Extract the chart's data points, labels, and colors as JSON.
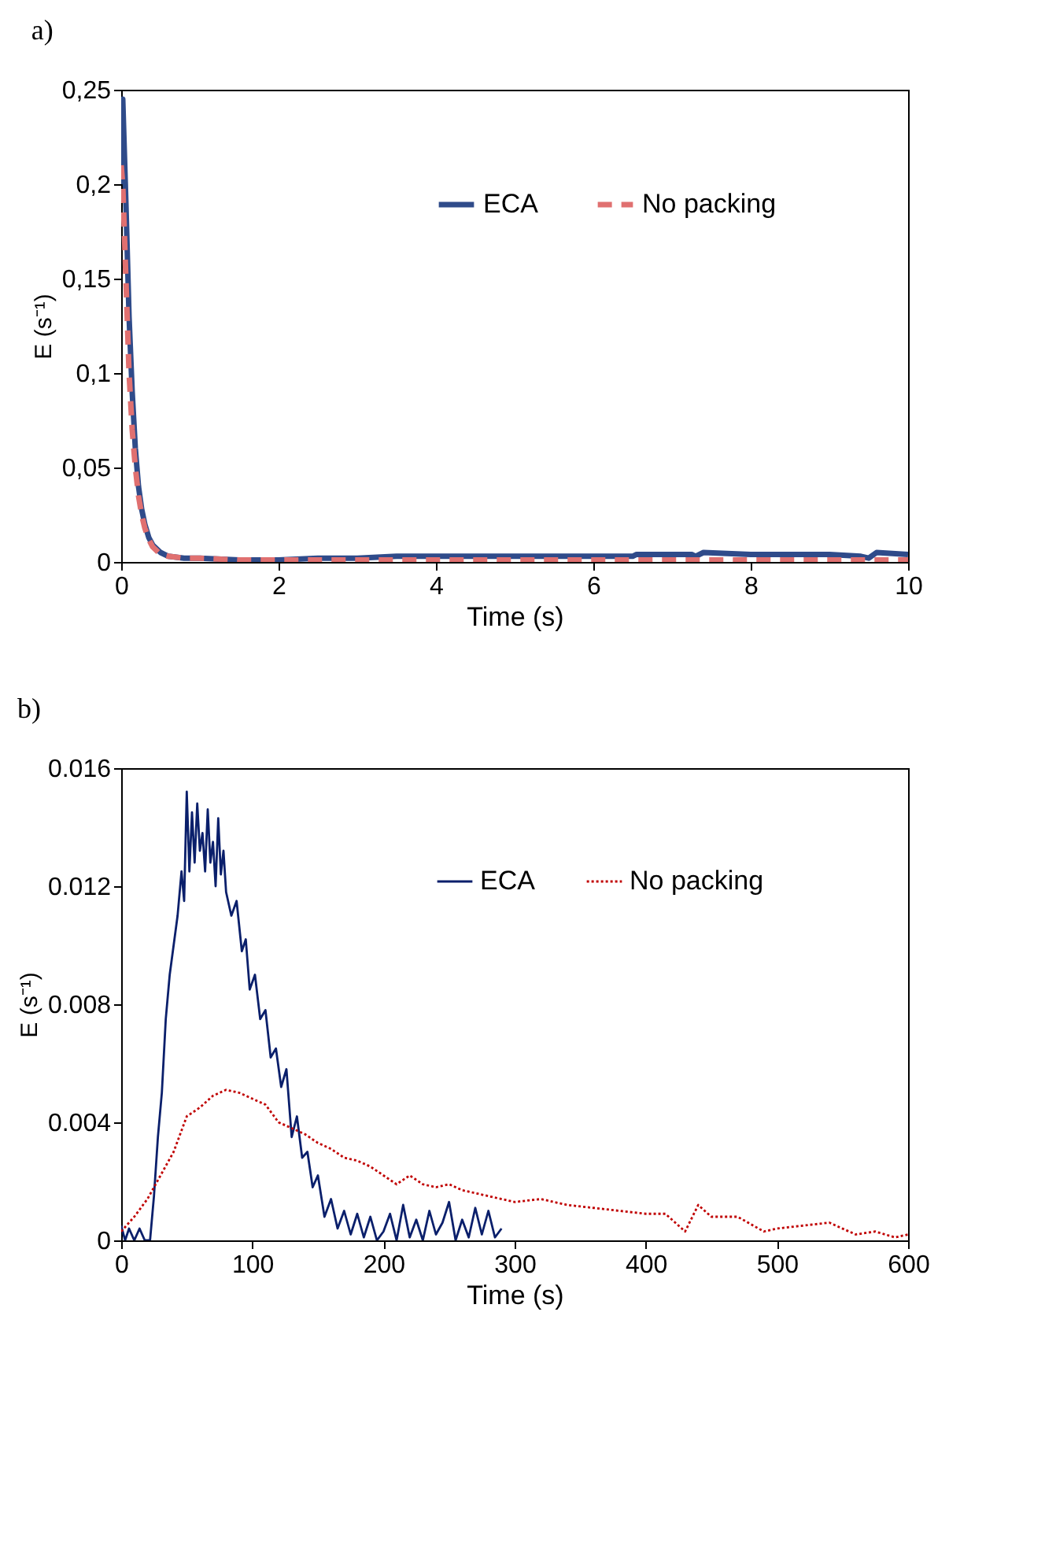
{
  "chart_data": [
    {
      "type": "line",
      "title": "a)",
      "xlabel": "Time (s)",
      "ylabel": "E (s⁻¹)",
      "xlim": [
        0,
        10
      ],
      "ylim": [
        0,
        0.25
      ],
      "xticks": [
        0,
        2,
        4,
        6,
        8,
        10
      ],
      "yticks": [
        0,
        {
          "value": 0.05,
          "label": "0,05"
        },
        {
          "value": 0.1,
          "label": "0,1"
        },
        {
          "value": 0.15,
          "label": "0,15"
        },
        {
          "value": 0.2,
          "label": "0,2"
        },
        {
          "value": 0.25,
          "label": "0,25"
        }
      ],
      "legend": "top right",
      "series": [
        {
          "name": "ECA",
          "color": "#2f4b8a",
          "line_style": "solid",
          "x": [
            0,
            0.02,
            0.06,
            0.1,
            0.14,
            0.18,
            0.22,
            0.26,
            0.3,
            0.35,
            0.4,
            0.5,
            0.6,
            0.8,
            1,
            1.5,
            2,
            2.5,
            3,
            3.5,
            4,
            5,
            6,
            6.5,
            6.55,
            7,
            7.25,
            7.3,
            7.4,
            8,
            9,
            9.4,
            9.5,
            9.6,
            10
          ],
          "values": [
            0.2,
            0.245,
            0.19,
            0.13,
            0.09,
            0.06,
            0.04,
            0.028,
            0.02,
            0.013,
            0.009,
            0.005,
            0.003,
            0.002,
            0.002,
            0.001,
            0.001,
            0.002,
            0.002,
            0.003,
            0.003,
            0.003,
            0.003,
            0.003,
            0.004,
            0.004,
            0.004,
            0.003,
            0.005,
            0.004,
            0.004,
            0.003,
            0.002,
            0.005,
            0.004
          ]
        },
        {
          "name": "No packing",
          "color": "#e07070",
          "line_style": "dashed",
          "x": [
            0,
            0.02,
            0.06,
            0.1,
            0.14,
            0.18,
            0.22,
            0.26,
            0.3,
            0.35,
            0.4,
            0.5,
            0.6,
            0.8,
            1,
            1.5,
            2,
            3,
            4,
            5,
            6,
            7,
            8,
            9,
            10
          ],
          "values": [
            0.21,
            0.2,
            0.15,
            0.1,
            0.07,
            0.05,
            0.035,
            0.025,
            0.018,
            0.012,
            0.008,
            0.004,
            0.003,
            0.002,
            0.002,
            0.001,
            0.001,
            0.001,
            0.001,
            0.001,
            0.001,
            0.001,
            0.001,
            0.001,
            0.001
          ]
        }
      ]
    },
    {
      "type": "line",
      "title": "b)",
      "xlabel": "Time (s)",
      "ylabel": "E (s⁻¹)",
      "xlim": [
        0,
        600
      ],
      "ylim": [
        0,
        0.016
      ],
      "xticks": [
        0,
        100,
        200,
        300,
        400,
        500,
        600
      ],
      "yticks": [
        0,
        0.004,
        0.008,
        0.012,
        0.016
      ],
      "legend": "top right",
      "series": [
        {
          "name": "ECA",
          "color": "#0a1f6b",
          "line_style": "solid",
          "x": [
            0,
            3,
            6,
            10,
            14,
            18,
            22,
            25,
            28,
            31,
            34,
            37,
            40,
            43,
            46,
            48,
            50,
            52,
            54,
            56,
            58,
            60,
            62,
            64,
            66,
            68,
            70,
            72,
            74,
            76,
            78,
            80,
            84,
            88,
            92,
            95,
            98,
            102,
            106,
            110,
            114,
            118,
            122,
            126,
            130,
            134,
            138,
            142,
            146,
            150,
            155,
            160,
            165,
            170,
            175,
            180,
            185,
            190,
            195,
            200,
            205,
            210,
            215,
            220,
            225,
            230,
            235,
            240,
            245,
            250,
            255,
            260,
            265,
            270,
            275,
            280,
            285,
            290
          ],
          "values": [
            0.0005,
            0,
            0.0004,
            0,
            0.0004,
            0,
            0,
            0.0015,
            0.0035,
            0.005,
            0.0075,
            0.009,
            0.01,
            0.011,
            0.0125,
            0.0115,
            0.0152,
            0.0125,
            0.0145,
            0.0128,
            0.0148,
            0.0132,
            0.0138,
            0.0125,
            0.0146,
            0.0128,
            0.0135,
            0.012,
            0.0143,
            0.0124,
            0.0132,
            0.0118,
            0.011,
            0.0115,
            0.0098,
            0.0102,
            0.0085,
            0.009,
            0.0075,
            0.0078,
            0.0062,
            0.0065,
            0.0052,
            0.0058,
            0.0035,
            0.0042,
            0.0028,
            0.003,
            0.0018,
            0.0022,
            0.0008,
            0.0014,
            0.0004,
            0.001,
            0.0002,
            0.0009,
            0.0001,
            0.0008,
            0,
            0.0003,
            0.0009,
            0,
            0.0012,
            0.0001,
            0.0007,
            0,
            0.001,
            0.0002,
            0.0006,
            0.0013,
            0,
            0.0007,
            0.0001,
            0.0011,
            0.0002,
            0.001,
            0.0001,
            0.0004
          ]
        },
        {
          "name": "No packing",
          "color": "#c00000",
          "line_style": "dotted",
          "x": [
            0,
            10,
            20,
            30,
            40,
            50,
            60,
            70,
            80,
            90,
            100,
            110,
            120,
            130,
            140,
            150,
            160,
            170,
            180,
            190,
            200,
            210,
            220,
            230,
            240,
            250,
            260,
            280,
            300,
            320,
            340,
            360,
            380,
            400,
            415,
            430,
            440,
            450,
            470,
            490,
            500,
            520,
            540,
            560,
            575,
            590,
            600
          ],
          "values": [
            0.0003,
            0.0008,
            0.0014,
            0.0022,
            0.003,
            0.0042,
            0.0045,
            0.0049,
            0.0051,
            0.005,
            0.0048,
            0.0046,
            0.004,
            0.0038,
            0.0036,
            0.0033,
            0.0031,
            0.0028,
            0.0027,
            0.0025,
            0.0022,
            0.0019,
            0.0022,
            0.0019,
            0.0018,
            0.0019,
            0.0017,
            0.0015,
            0.0013,
            0.0014,
            0.0012,
            0.0011,
            0.001,
            0.0009,
            0.0009,
            0.0003,
            0.0012,
            0.0008,
            0.0008,
            0.0003,
            0.0004,
            0.0005,
            0.0006,
            0.0002,
            0.0003,
            0.0001,
            0.0002
          ]
        }
      ]
    }
  ]
}
